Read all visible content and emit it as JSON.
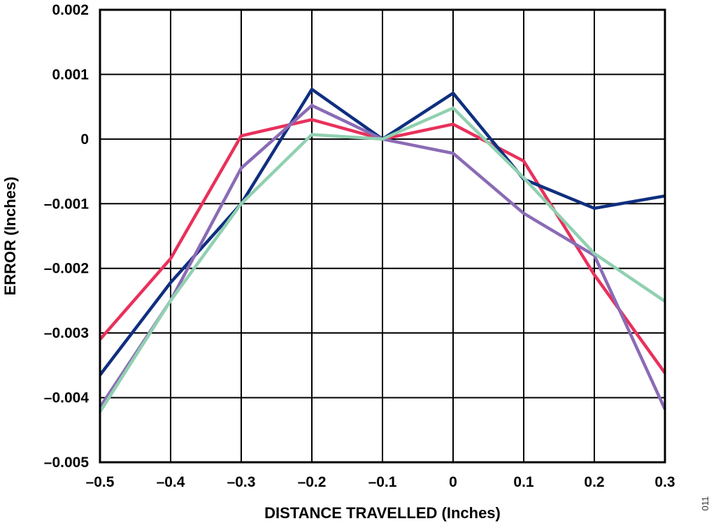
{
  "chart_data": {
    "type": "line",
    "title": "",
    "xlabel": "DISTANCE TRAVELLED (Inches)",
    "ylabel": "ERROR (Inches)",
    "xlim": [
      -0.5,
      0.3
    ],
    "ylim": [
      -0.005,
      0.002
    ],
    "xticks": [
      -0.5,
      -0.4,
      -0.3,
      -0.2,
      -0.1,
      0,
      0.1,
      0.2,
      0.3
    ],
    "xtick_labels": [
      "–0.5",
      "–0.4",
      "–0.3",
      "–0.2",
      "–0.1",
      "0",
      "0.1",
      "0.2",
      "0.3"
    ],
    "yticks": [
      0.002,
      0.001,
      0,
      -0.001,
      -0.002,
      -0.003,
      -0.004,
      -0.005
    ],
    "ytick_labels": [
      "0.002",
      "0.001",
      "0",
      "–0.001",
      "–0.002",
      "–0.003",
      "–0.004",
      "–0.005"
    ],
    "grid": true,
    "x": [
      -0.5,
      -0.4,
      -0.3,
      -0.2,
      -0.1,
      0,
      0.1,
      0.2,
      0.3
    ],
    "series": [
      {
        "color": "#E8315B",
        "values": [
          -0.0031,
          -0.00185,
          5e-05,
          0.0003,
          0.0,
          0.00023,
          -0.00034,
          -0.0021,
          -0.00362
        ]
      },
      {
        "color": "#0F2F7F",
        "values": [
          -0.00365,
          -0.00222,
          -0.001,
          0.00077,
          0.0,
          0.00071,
          -0.00062,
          -0.00107,
          -0.00088
        ]
      },
      {
        "color": "#8A6BB5",
        "values": [
          -0.00415,
          -0.0025,
          -0.00045,
          0.00052,
          0.0,
          -0.00022,
          -0.00115,
          -0.0018,
          -0.00418
        ]
      },
      {
        "color": "#90D0B0",
        "values": [
          -0.00422,
          -0.0025,
          -0.001,
          7e-05,
          0.0,
          0.00048,
          -0.0006,
          -0.00177,
          -0.00251
        ]
      }
    ]
  },
  "figure_id": "011"
}
